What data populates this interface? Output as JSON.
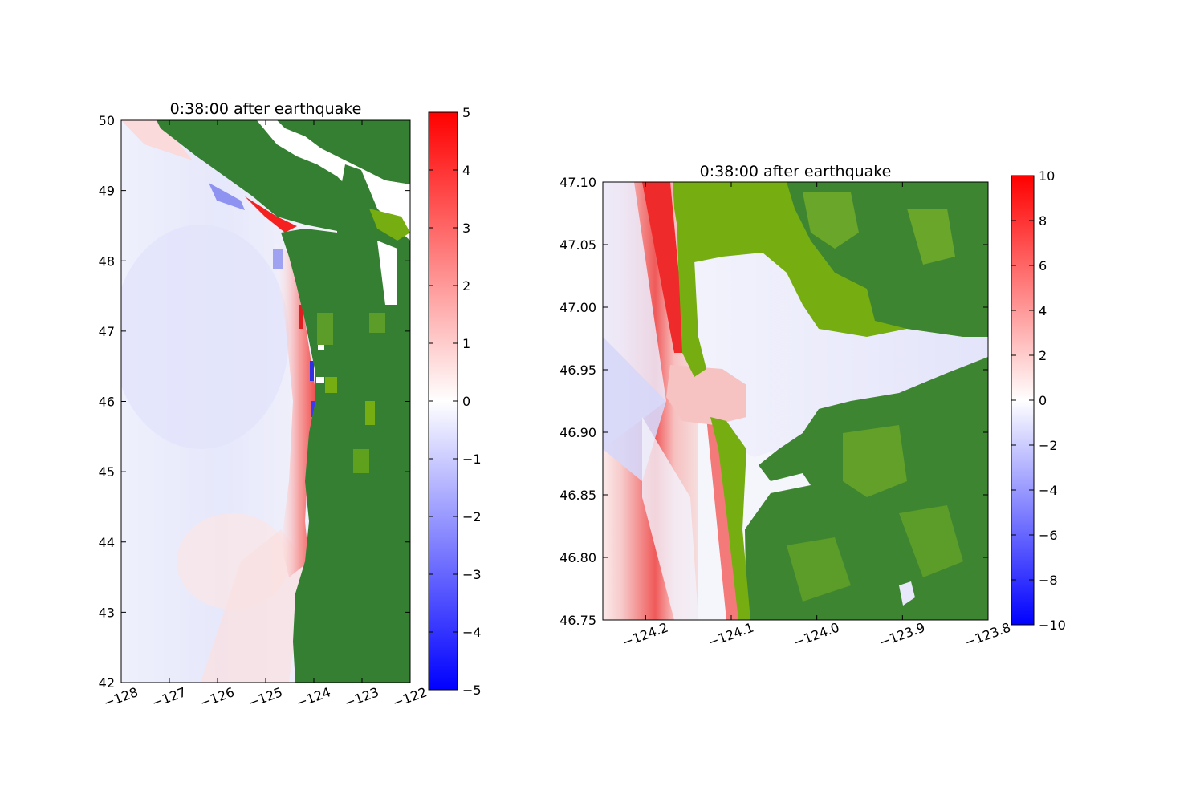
{
  "chart_data": [
    {
      "type": "heatmap",
      "title": "0:38:00 after earthquake",
      "xlabel": "",
      "ylabel": "",
      "xlim": [
        -128,
        -122
      ],
      "ylim": [
        42,
        50
      ],
      "xticks": [
        -128,
        -127,
        -126,
        -125,
        -124,
        -123,
        -122
      ],
      "yticks": [
        42,
        43,
        44,
        45,
        46,
        47,
        48,
        49,
        50
      ],
      "xtick_labels": [
        "−128",
        "−127",
        "−126",
        "−125",
        "−124",
        "−123",
        "−122"
      ],
      "ytick_labels": [
        "42",
        "43",
        "44",
        "45",
        "46",
        "47",
        "48",
        "49",
        "50"
      ],
      "colorbar": {
        "range": [
          -5,
          5
        ],
        "ticks": [
          -5,
          -4,
          -3,
          -2,
          -1,
          0,
          1,
          2,
          3,
          4,
          5
        ],
        "tick_labels": [
          "−5",
          "−4",
          "−3",
          "−2",
          "−1",
          "0",
          "1",
          "2",
          "3",
          "4",
          "5"
        ],
        "colormap": [
          "#0000ff",
          "#ffffff",
          "#ff0000"
        ]
      },
      "land_color": "#357f33",
      "land_light_color": "#76ad10",
      "grid": false
    },
    {
      "type": "heatmap",
      "title": "0:38:00 after earthquake",
      "xlabel": "",
      "ylabel": "",
      "xlim": [
        -124.25,
        -123.8
      ],
      "ylim": [
        46.75,
        47.1
      ],
      "xticks": [
        -124.2,
        -124.1,
        -124.0,
        -123.9,
        -123.8
      ],
      "yticks": [
        46.75,
        46.8,
        46.85,
        46.9,
        46.95,
        47.0,
        47.05,
        47.1
      ],
      "xtick_labels": [
        "−124.2",
        "−124.1",
        "−124.0",
        "−123.9",
        "−123.8"
      ],
      "ytick_labels": [
        "46.75",
        "46.80",
        "46.85",
        "46.90",
        "46.95",
        "47.00",
        "47.05",
        "47.10"
      ],
      "colorbar": {
        "range": [
          -10,
          10
        ],
        "ticks": [
          -10,
          -8,
          -6,
          -4,
          -2,
          0,
          2,
          4,
          6,
          8,
          10
        ],
        "tick_labels": [
          "−10",
          "−8",
          "−6",
          "−4",
          "−2",
          "0",
          "2",
          "4",
          "6",
          "8",
          "10"
        ],
        "colormap": [
          "#0000ff",
          "#ffffff",
          "#ff0000"
        ]
      },
      "land_color": "#357f33",
      "land_light_color": "#76ad10",
      "grid": false
    }
  ]
}
